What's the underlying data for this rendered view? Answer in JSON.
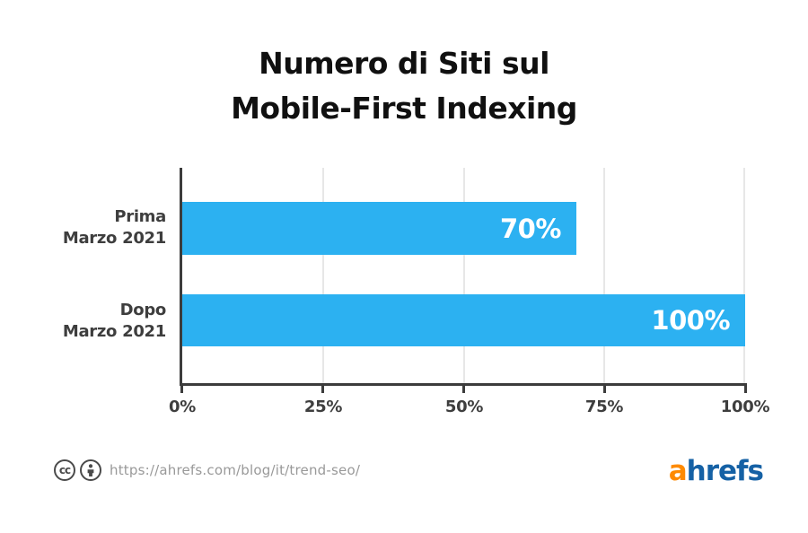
{
  "title": {
    "line1": "Numero di Siti sul",
    "line2": "Mobile-First Indexing"
  },
  "chart_data": {
    "type": "bar",
    "orientation": "horizontal",
    "title": "Numero di Siti sul Mobile-First Indexing",
    "categories": [
      "Prima Marzo 2021",
      "Dopo Marzo 2021"
    ],
    "category_lines": [
      [
        "Prima",
        "Marzo 2021"
      ],
      [
        "Dopo",
        "Marzo 2021"
      ]
    ],
    "values": [
      70,
      100
    ],
    "value_labels": [
      "70%",
      "100%"
    ],
    "xlim": [
      0,
      100
    ],
    "x_tick_labels": [
      "0%",
      "25%",
      "50%",
      "75%",
      "100%"
    ],
    "x_tick_values": [
      0,
      25,
      50,
      75,
      100
    ],
    "grid": true,
    "legend": false,
    "bar_color": "#2cb1f1",
    "value_label_color": "#ffffff"
  },
  "footer": {
    "license_icons": [
      "cc-icon",
      "attribution-person-icon"
    ],
    "cc_glyph": "cc",
    "source_url": "https://ahrefs.com/blog/it/trend-seo/",
    "logo": {
      "text_orange": "a",
      "text_blue": "hrefs",
      "orange_color": "#fe8a01",
      "blue_color": "#1561a5"
    }
  },
  "colors": {
    "axis": "#3c3c3c",
    "gridline": "#e7e7e7",
    "label_gray": "#3e3e3e",
    "url_gray": "#999999",
    "title_black": "#101010"
  }
}
